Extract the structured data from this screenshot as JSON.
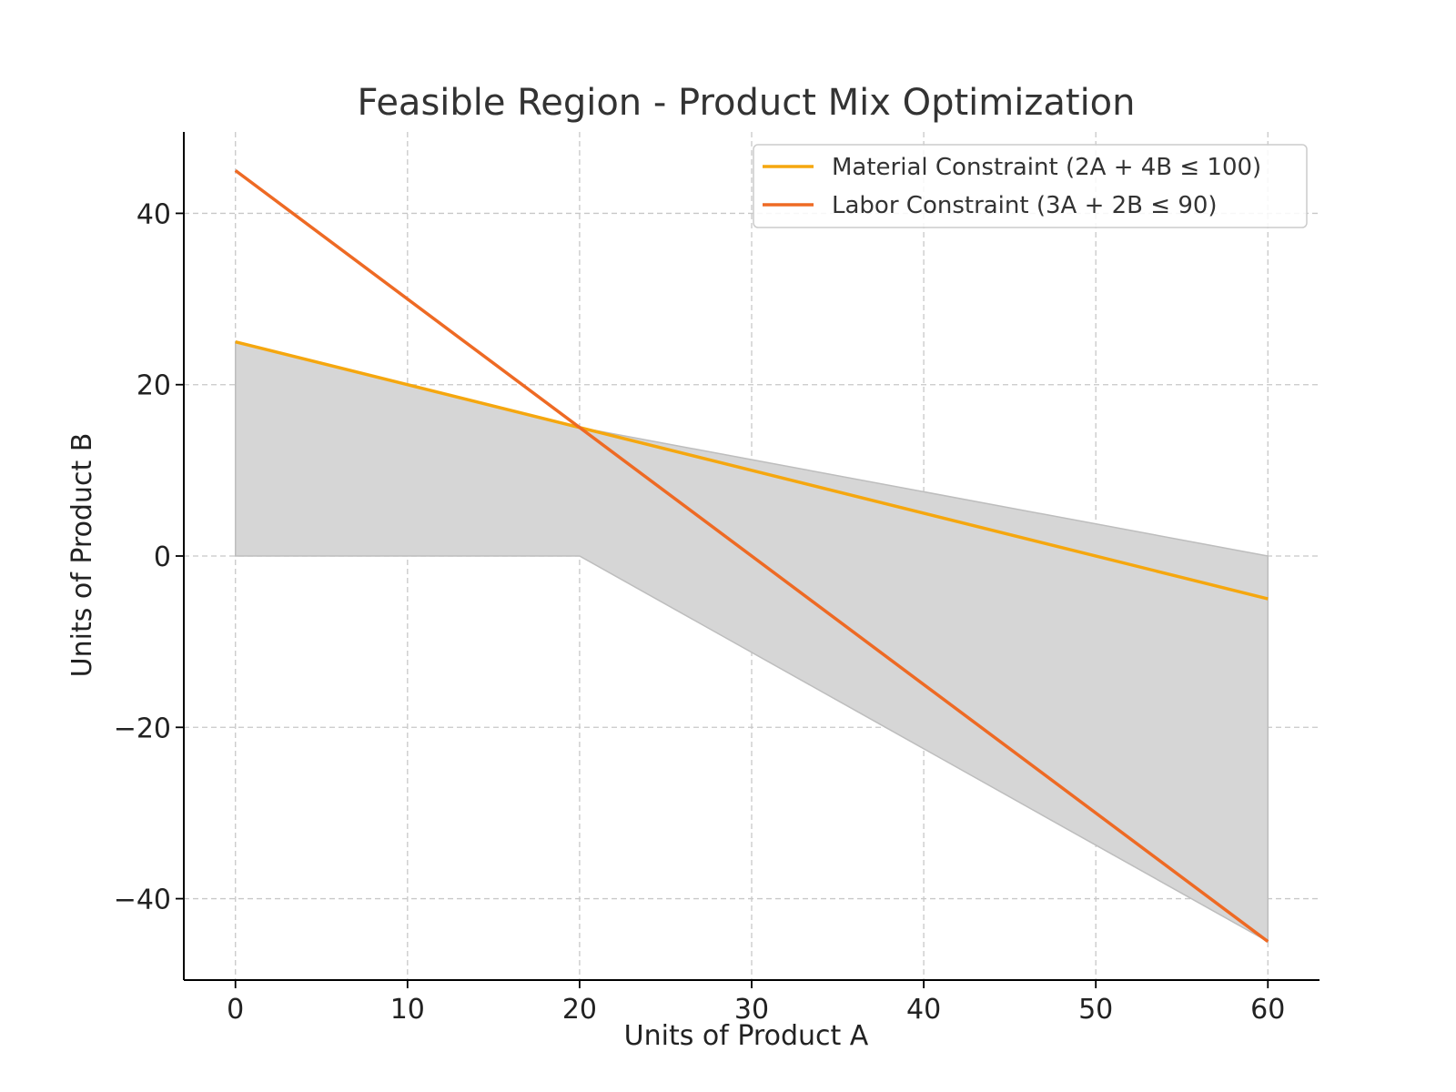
{
  "chart_data": {
    "type": "line",
    "title": "Feasible Region - Product Mix Optimization",
    "xlabel": "Units of Product A",
    "ylabel": "Units of Product B",
    "xlim": [
      -3,
      63
    ],
    "ylim": [
      -49.5,
      49.5
    ],
    "xticks": [
      0,
      10,
      20,
      30,
      40,
      50,
      60
    ],
    "yticks": [
      -40,
      -20,
      0,
      20,
      40
    ],
    "xtick_labels": [
      "0",
      "10",
      "20",
      "30",
      "40",
      "50",
      "60"
    ],
    "ytick_labels": [
      "−40",
      "−20",
      "0",
      "20",
      "40"
    ],
    "grid": true,
    "legend_position": "upper right",
    "series": [
      {
        "name": "Material Constraint (2A + 4B ≤ 100)",
        "color": "#F5A70F",
        "x": [
          0,
          60
        ],
        "y": [
          25,
          -5
        ]
      },
      {
        "name": "Labor Constraint (3A + 2B ≤ 90)",
        "color": "#EE6A24",
        "x": [
          0,
          60
        ],
        "y": [
          45,
          -45
        ]
      }
    ],
    "shaded_region": {
      "color": "#d6d6d6",
      "x": [
        0,
        20,
        60
      ],
      "upper": [
        25,
        15,
        0
      ],
      "lower": [
        0,
        0,
        -45
      ]
    }
  }
}
